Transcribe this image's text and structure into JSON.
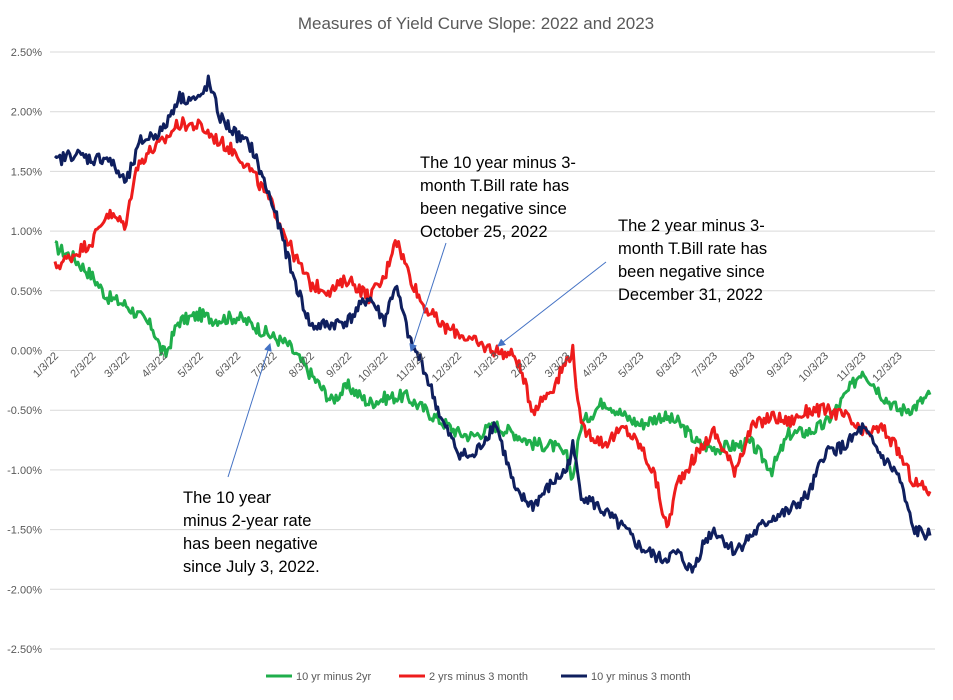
{
  "chart_data": {
    "type": "line",
    "title": "Measures of Yield Curve Slope: 2022 and 2023",
    "xlabel": "",
    "ylabel": "",
    "ylim": [
      -0.025,
      0.025
    ],
    "yticks": [
      "2.50%",
      "2.00%",
      "1.50%",
      "1.00%",
      "0.50%",
      "0.00%",
      "-0.50%",
      "-1.00%",
      "-1.50%",
      "-2.00%",
      "-2.50%"
    ],
    "x_tick_labels": [
      "1/3/22",
      "2/3/22",
      "3/3/22",
      "4/3/22",
      "5/3/22",
      "6/3/22",
      "7/3/22",
      "8/3/22",
      "9/3/22",
      "10/3/22",
      "11/3/22",
      "12/3/22",
      "1/3/23",
      "2/3/23",
      "3/3/23",
      "4/3/23",
      "5/3/23",
      "6/3/23",
      "7/3/23",
      "8/3/23",
      "9/3/23",
      "10/3/23",
      "11/3/23",
      "12/3/23"
    ],
    "grid": true,
    "legend_position": "bottom",
    "series": [
      {
        "name": "10 yr minus 2yr",
        "color": "#1fae4b",
        "x": [
          "1/3/22",
          "1/18/22",
          "2/3/22",
          "2/15/22",
          "3/3/22",
          "3/15/22",
          "3/25/22",
          "4/1/22",
          "4/5/22",
          "4/15/22",
          "5/3/22",
          "5/15/22",
          "6/3/22",
          "6/15/22",
          "7/3/22",
          "7/15/22",
          "8/3/22",
          "8/20/22",
          "9/3/22",
          "9/20/22",
          "10/3/22",
          "10/20/22",
          "11/3/22",
          "11/20/22",
          "12/3/22",
          "12/15/22",
          "1/3/23",
          "1/20/23",
          "2/3/23",
          "2/20/23",
          "3/3/23",
          "3/8/23",
          "3/15/23",
          "4/3/23",
          "4/20/23",
          "5/3/23",
          "5/20/23",
          "6/3/23",
          "6/20/23",
          "7/3/23",
          "7/20/23",
          "8/3/23",
          "8/20/23",
          "9/3/23",
          "9/20/23",
          "10/3/23",
          "10/15/23",
          "10/25/23",
          "11/3/23",
          "11/20/23",
          "12/3/23",
          "12/15/23",
          "12/29/23"
        ],
        "y": [
          0.0087,
          0.0078,
          0.0062,
          0.0045,
          0.0038,
          0.0028,
          0.0019,
          0.0,
          -0.0003,
          0.0024,
          0.003,
          0.0026,
          0.0028,
          0.0022,
          0.0011,
          0.0005,
          -0.002,
          -0.0042,
          -0.003,
          -0.0044,
          -0.004,
          -0.0038,
          -0.0048,
          -0.006,
          -0.0069,
          -0.0072,
          -0.0063,
          -0.007,
          -0.0078,
          -0.008,
          -0.0089,
          -0.0107,
          -0.0062,
          -0.0042,
          -0.0055,
          -0.0062,
          -0.0055,
          -0.006,
          -0.0078,
          -0.0082,
          -0.008,
          -0.0078,
          -0.01,
          -0.007,
          -0.0068,
          -0.0062,
          -0.0045,
          -0.003,
          -0.0016,
          -0.0038,
          -0.005,
          -0.0048,
          -0.0037
        ]
      },
      {
        "name": "2 yrs minus 3 month",
        "color": "#ee1c1c",
        "x": [
          "1/3/22",
          "1/18/22",
          "2/3/22",
          "2/15/22",
          "3/3/22",
          "3/10/22",
          "3/20/22",
          "4/3/22",
          "4/15/22",
          "5/3/22",
          "5/15/22",
          "6/3/22",
          "6/15/22",
          "7/3/22",
          "7/20/22",
          "8/3/22",
          "8/20/22",
          "9/3/22",
          "9/20/22",
          "10/3/22",
          "10/12/22",
          "10/25/22",
          "11/3/22",
          "11/20/22",
          "12/3/22",
          "12/20/22",
          "1/3/23",
          "1/20/23",
          "2/3/23",
          "2/20/23",
          "3/3/23",
          "3/8/23",
          "3/15/23",
          "4/3/23",
          "4/20/23",
          "5/3/23",
          "5/15/23",
          "5/25/23",
          "6/3/23",
          "6/20/23",
          "7/3/23",
          "7/20/23",
          "8/3/23",
          "8/20/23",
          "9/3/23",
          "9/20/23",
          "10/3/23",
          "10/20/23",
          "11/3/23",
          "11/20/23",
          "12/3/23",
          "12/15/23",
          "12/29/23"
        ],
        "y": [
          0.007,
          0.008,
          0.0092,
          0.0115,
          0.0105,
          0.015,
          0.0165,
          0.0175,
          0.019,
          0.0188,
          0.0178,
          0.0165,
          0.015,
          0.012,
          0.008,
          0.0055,
          0.005,
          0.006,
          0.0045,
          0.006,
          0.0095,
          0.006,
          0.004,
          0.002,
          0.0015,
          0.0005,
          0.0,
          -0.0005,
          -0.005,
          -0.003,
          -0.0008,
          0.0,
          -0.0065,
          -0.0078,
          -0.0065,
          -0.008,
          -0.0105,
          -0.015,
          -0.011,
          -0.0085,
          -0.0068,
          -0.01,
          -0.0065,
          -0.0055,
          -0.006,
          -0.005,
          -0.005,
          -0.0055,
          -0.007,
          -0.0065,
          -0.0085,
          -0.011,
          -0.0118
        ]
      },
      {
        "name": "10 yr minus 3 month",
        "color": "#0f1f5e",
        "x": [
          "1/3/22",
          "1/18/22",
          "2/3/22",
          "2/15/22",
          "3/3/22",
          "3/15/22",
          "4/3/22",
          "4/15/22",
          "5/3/22",
          "5/10/22",
          "5/20/22",
          "6/3/22",
          "6/15/22",
          "7/3/22",
          "7/20/22",
          "8/3/22",
          "8/20/22",
          "9/3/22",
          "9/20/22",
          "10/3/22",
          "10/12/22",
          "10/25/22",
          "11/3/22",
          "11/20/22",
          "12/3/22",
          "12/15/22",
          "1/3/23",
          "1/20/23",
          "2/3/23",
          "2/20/23",
          "3/3/23",
          "3/8/23",
          "3/15/23",
          "4/3/23",
          "4/20/23",
          "5/3/23",
          "5/20/23",
          "6/3/23",
          "6/15/23",
          "6/25/23",
          "7/3/23",
          "7/20/23",
          "8/3/23",
          "8/20/23",
          "9/3/23",
          "9/20/23",
          "10/3/23",
          "10/20/23",
          "11/3/23",
          "11/20/23",
          "12/3/23",
          "12/15/23",
          "12/29/23"
        ],
        "y": [
          0.0158,
          0.0165,
          0.016,
          0.0162,
          0.014,
          0.0175,
          0.0185,
          0.0212,
          0.021,
          0.0225,
          0.0195,
          0.018,
          0.017,
          0.012,
          0.006,
          0.002,
          0.0022,
          0.0025,
          0.0045,
          0.0025,
          0.0055,
          0.0005,
          -0.001,
          -0.006,
          -0.0085,
          -0.009,
          -0.006,
          -0.012,
          -0.013,
          -0.011,
          -0.01,
          -0.008,
          -0.012,
          -0.0135,
          -0.015,
          -0.0165,
          -0.0175,
          -0.017,
          -0.0185,
          -0.016,
          -0.015,
          -0.0168,
          -0.0155,
          -0.014,
          -0.0135,
          -0.012,
          -0.0085,
          -0.008,
          -0.0065,
          -0.009,
          -0.0105,
          -0.015,
          -0.0155
        ]
      }
    ],
    "annotations": [
      {
        "lines": [
          "The 10 year minus 3-",
          "month T.Bill rate has",
          "been negative since",
          "October 25, 2022"
        ]
      },
      {
        "lines": [
          "The 2 year minus 3-",
          "month T.Bill rate has",
          "been negative since",
          "December 31, 2022"
        ]
      },
      {
        "lines": [
          "The 10 year",
          "minus 2-year rate",
          "has been negative",
          "since July 3, 2022."
        ]
      }
    ]
  }
}
